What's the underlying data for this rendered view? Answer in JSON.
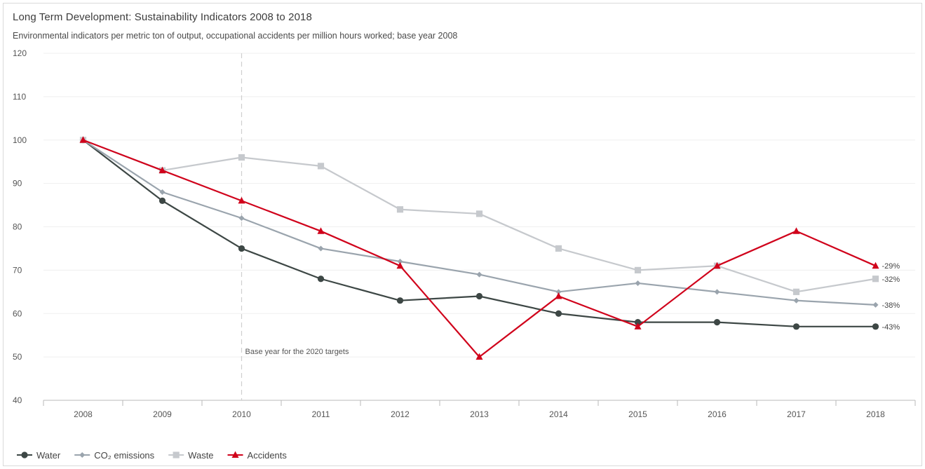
{
  "chart_data": {
    "type": "line",
    "title": "Long Term Development: Sustainability Indicators 2008 to 2018",
    "subtitle": "Environmental indicators per metric ton of output, occupational accidents per million hours worked; base year 2008",
    "categories": [
      "2008",
      "2009",
      "2010",
      "2011",
      "2012",
      "2013",
      "2014",
      "2015",
      "2016",
      "2017",
      "2018"
    ],
    "highlight_category": "2018",
    "highlight_color": "#d0021b",
    "ylim": [
      40,
      120
    ],
    "yticks": [
      40,
      50,
      60,
      70,
      80,
      90,
      100,
      110,
      120
    ],
    "grid": true,
    "legend_position": "bottom-left",
    "annotation": {
      "x": "2010",
      "text": "Base year for the 2020 targets"
    },
    "series": [
      {
        "name": "Water",
        "color": "#3d4745",
        "marker": "circle",
        "values": [
          100,
          86,
          75,
          68,
          63,
          64,
          60,
          58,
          58,
          57,
          57
        ],
        "end_label": "-43%"
      },
      {
        "name": "CO2 emissions",
        "legend_label": "CO₂ emissions",
        "color": "#9aa4ad",
        "marker": "diamond",
        "values": [
          100,
          88,
          82,
          75,
          72,
          69,
          65,
          67,
          65,
          63,
          62
        ],
        "end_label": "-38%"
      },
      {
        "name": "Waste",
        "color": "#c6c9cd",
        "marker": "square",
        "values": [
          100,
          93,
          96,
          94,
          84,
          83,
          75,
          70,
          71,
          65,
          68
        ],
        "end_label": "-32%"
      },
      {
        "name": "Accidents",
        "color": "#d0021b",
        "marker": "triangle",
        "values": [
          100,
          93,
          86,
          79,
          71,
          50,
          64,
          57,
          71,
          79,
          71
        ],
        "end_label": "-29%"
      }
    ]
  }
}
